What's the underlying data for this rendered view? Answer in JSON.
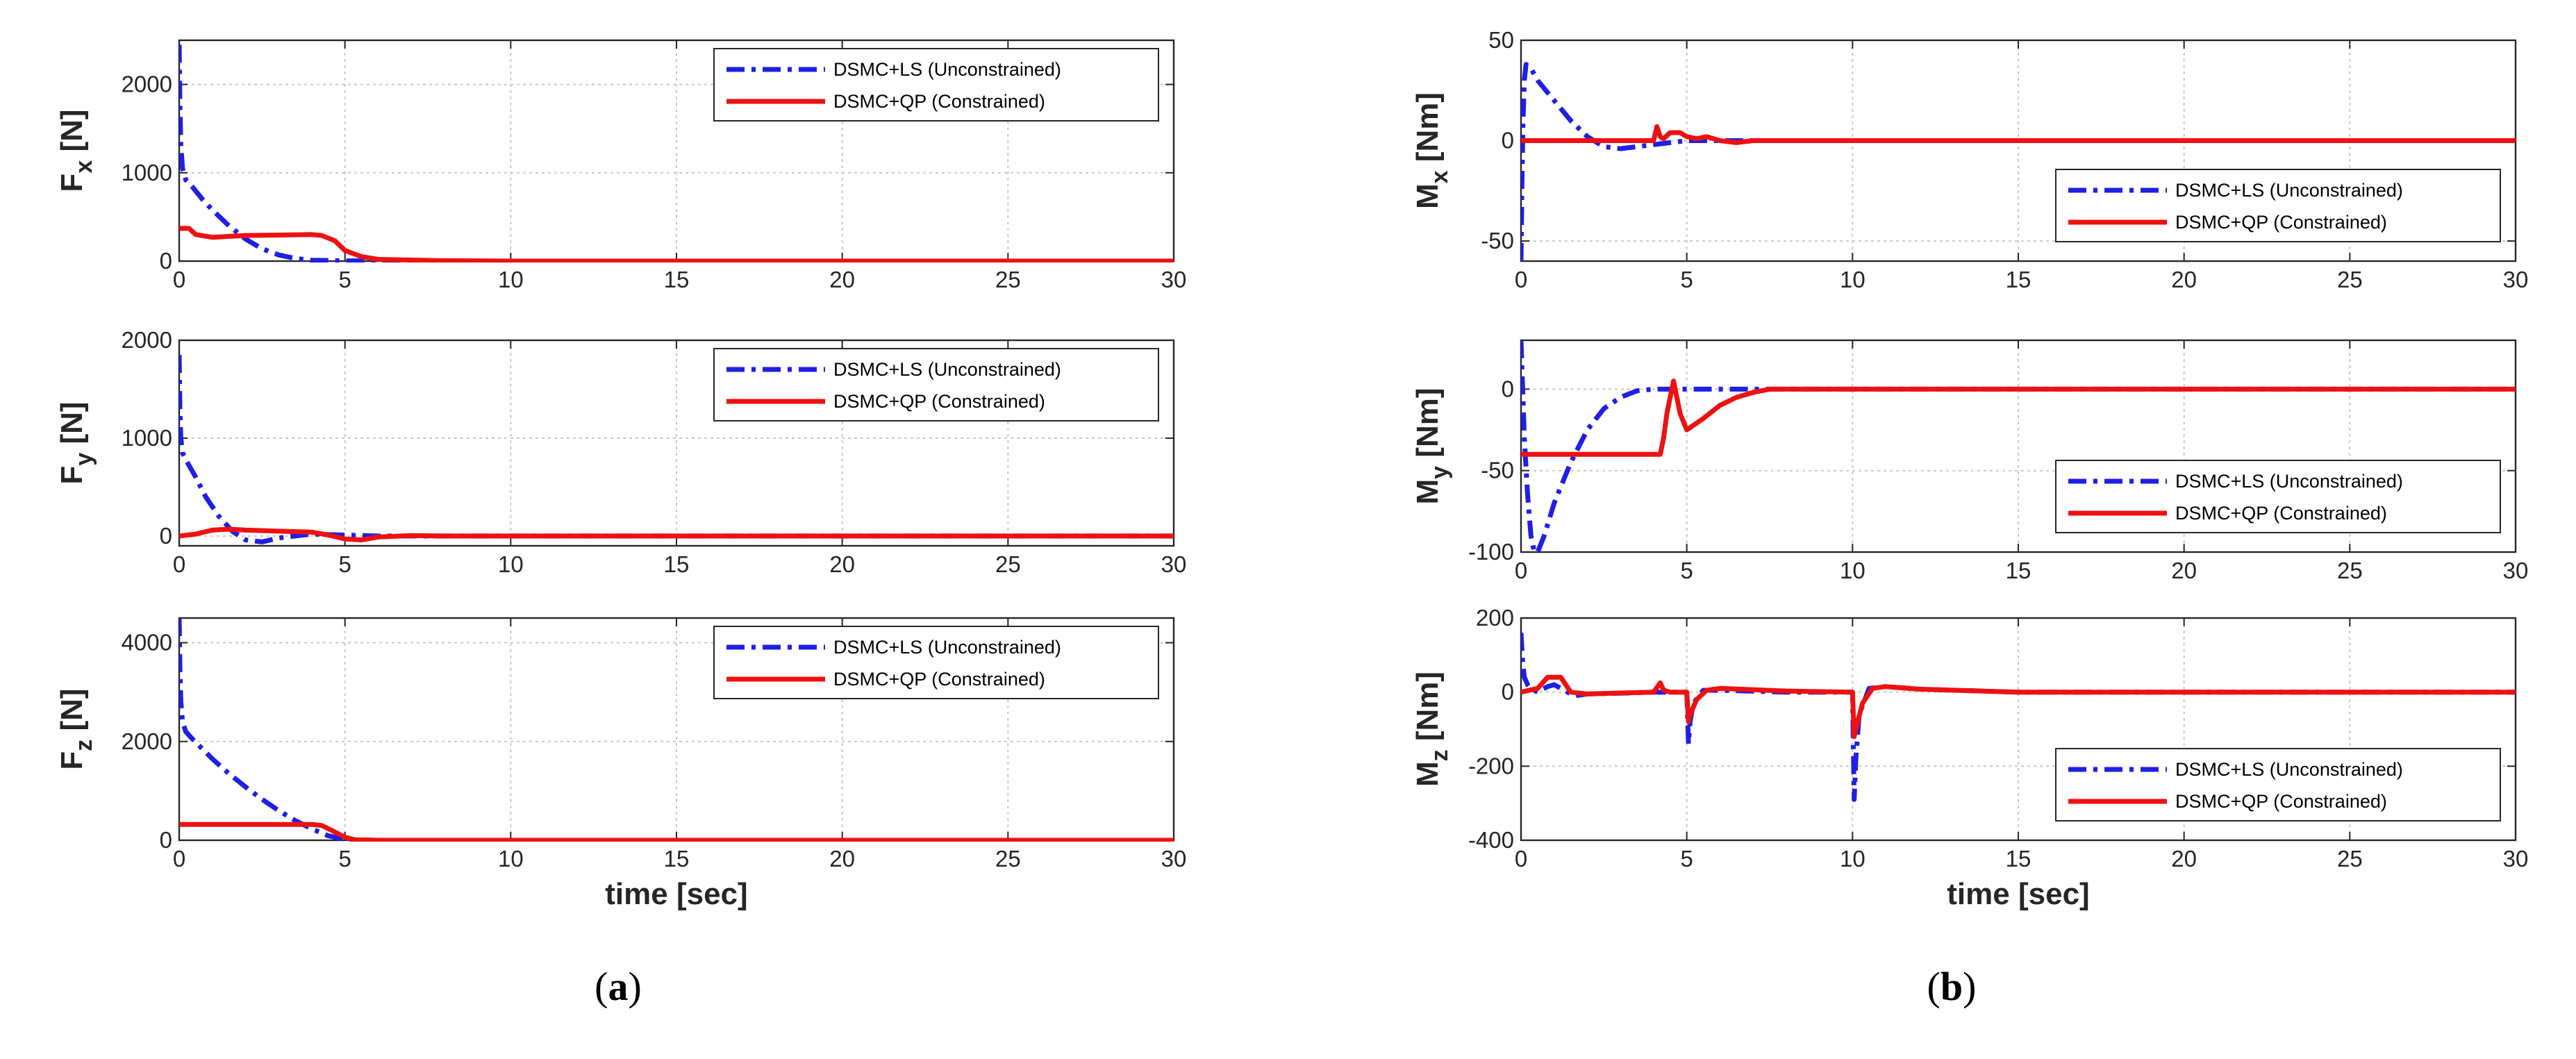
{
  "colors": {
    "unconstrained": "#1f1fe6",
    "constrained": "#ee1111"
  },
  "captions": {
    "a": "(a)",
    "b": "(b)"
  },
  "chart_data": [
    {
      "type": "line",
      "panel": "a-1",
      "ylabel_main": "F",
      "ylabel_sub": "x",
      "ylabel_unit": " [N]",
      "xlabel": "",
      "xlim": [
        0,
        30
      ],
      "ylim": [
        0,
        2500
      ],
      "xticks": [
        0,
        5,
        10,
        15,
        20,
        25,
        30
      ],
      "yticks": [
        0,
        1000,
        2000
      ],
      "grid": true,
      "legend_position": "top-right",
      "series": [
        {
          "name": "DSMC+LS (Unconstrained)",
          "style": "dashdot",
          "x": [
            0,
            0.02,
            0.05,
            0.1,
            0.2,
            0.4,
            0.7,
            1,
            1.5,
            2,
            2.5,
            3,
            3.5,
            4,
            5,
            6,
            8,
            10,
            30
          ],
          "y": [
            2450,
            1800,
            1300,
            1050,
            920,
            840,
            700,
            580,
            400,
            250,
            140,
            70,
            30,
            10,
            3,
            2,
            1,
            0,
            0
          ]
        },
        {
          "name": "DSMC+QP (Constrained)",
          "style": "solid",
          "x": [
            0,
            0.3,
            0.5,
            1,
            1.5,
            2,
            3,
            4,
            4.3,
            4.7,
            5,
            5.5,
            6,
            8,
            10,
            30
          ],
          "y": [
            370,
            370,
            300,
            270,
            280,
            290,
            295,
            300,
            290,
            230,
            120,
            50,
            20,
            5,
            0,
            0
          ]
        }
      ]
    },
    {
      "type": "line",
      "panel": "a-2",
      "ylabel_main": "F",
      "ylabel_sub": "y",
      "ylabel_unit": " [N]",
      "xlabel": "",
      "xlim": [
        0,
        30
      ],
      "ylim": [
        -100,
        2000
      ],
      "xticks": [
        0,
        5,
        10,
        15,
        20,
        25,
        30
      ],
      "yticks": [
        0,
        1000,
        2000
      ],
      "grid": true,
      "legend_position": "top-right",
      "series": [
        {
          "name": "DSMC+LS (Unconstrained)",
          "style": "dashdot",
          "x": [
            0,
            0.02,
            0.05,
            0.1,
            0.2,
            0.5,
            0.8,
            1.2,
            1.6,
            2,
            2.5,
            3,
            4,
            5,
            6,
            8,
            30
          ],
          "y": [
            1850,
            1300,
            1000,
            850,
            780,
            600,
            400,
            200,
            50,
            -40,
            -60,
            -20,
            20,
            10,
            0,
            0,
            0
          ]
        },
        {
          "name": "DSMC+QP (Constrained)",
          "style": "solid",
          "x": [
            0,
            0.5,
            1,
            1.5,
            2,
            3,
            4,
            4.5,
            5,
            5.5,
            6,
            7,
            8,
            30
          ],
          "y": [
            0,
            20,
            60,
            70,
            60,
            50,
            40,
            10,
            -30,
            -40,
            -10,
            5,
            0,
            0
          ]
        }
      ]
    },
    {
      "type": "line",
      "panel": "a-3",
      "ylabel_main": "F",
      "ylabel_sub": "z",
      "ylabel_unit": " [N]",
      "xlabel": "time [sec]",
      "xlim": [
        0,
        30
      ],
      "ylim": [
        0,
        4500
      ],
      "xticks": [
        0,
        5,
        10,
        15,
        20,
        25,
        30
      ],
      "yticks": [
        0,
        2000,
        4000
      ],
      "grid": true,
      "legend_position": "top-right",
      "series": [
        {
          "name": "DSMC+LS (Unconstrained)",
          "style": "dashdot",
          "x": [
            0,
            0.02,
            0.05,
            0.1,
            0.2,
            0.4,
            0.7,
            1,
            1.5,
            2,
            2.5,
            3,
            3.5,
            4,
            4.5,
            5,
            5.5,
            6,
            10,
            30
          ],
          "y": [
            4500,
            3500,
            2800,
            2400,
            2200,
            2050,
            1850,
            1650,
            1350,
            1080,
            830,
            600,
            400,
            230,
            90,
            20,
            5,
            0,
            0,
            0
          ]
        },
        {
          "name": "DSMC+QP (Constrained)",
          "style": "solid",
          "x": [
            0,
            4,
            4.3,
            4.6,
            5,
            5.3,
            6,
            10,
            30
          ],
          "y": [
            320,
            320,
            300,
            200,
            60,
            10,
            0,
            0,
            0
          ]
        }
      ]
    },
    {
      "type": "line",
      "panel": "b-1",
      "ylabel_main": "M",
      "ylabel_sub": "x",
      "ylabel_unit": " [Nm]",
      "xlabel": "",
      "xlim": [
        0,
        30
      ],
      "ylim": [
        -60,
        50
      ],
      "xticks": [
        0,
        5,
        10,
        15,
        20,
        25,
        30
      ],
      "yticks": [
        -50,
        0,
        50
      ],
      "grid": true,
      "legend_position": "bottom-right",
      "series": [
        {
          "name": "DSMC+LS (Unconstrained)",
          "style": "dashdot",
          "x": [
            0,
            0.03,
            0.06,
            0.1,
            0.15,
            0.3,
            0.5,
            1,
            1.5,
            2,
            2.5,
            3,
            4,
            5,
            6,
            7,
            30
          ],
          "y": [
            -60,
            -20,
            10,
            30,
            38,
            36,
            30,
            20,
            10,
            2,
            -3,
            -4,
            -2,
            0,
            0,
            0,
            0
          ]
        },
        {
          "name": "DSMC+QP (Constrained)",
          "style": "solid",
          "x": [
            0,
            4,
            4.1,
            4.2,
            4.3,
            4.5,
            4.8,
            5,
            5.3,
            5.6,
            6,
            6.5,
            7,
            30
          ],
          "y": [
            0,
            0,
            7,
            2,
            1,
            4,
            4,
            2,
            1,
            2,
            0,
            -1,
            0,
            0
          ]
        }
      ]
    },
    {
      "type": "line",
      "panel": "b-2",
      "ylabel_main": "M",
      "ylabel_sub": "y",
      "ylabel_unit": " [Nm]",
      "xlabel": "",
      "xlim": [
        0,
        30
      ],
      "ylim": [
        -100,
        30
      ],
      "xticks": [
        0,
        5,
        10,
        15,
        20,
        25,
        30
      ],
      "yticks": [
        -100,
        -50,
        0
      ],
      "grid": true,
      "legend_position": "bottom-right",
      "series": [
        {
          "name": "DSMC+LS (Unconstrained)",
          "style": "dashdot",
          "x": [
            0,
            0.05,
            0.1,
            0.2,
            0.3,
            0.4,
            0.5,
            0.7,
            1,
            1.5,
            2,
            2.5,
            3,
            3.5,
            4,
            5,
            6,
            7,
            30
          ],
          "y": [
            30,
            0,
            -30,
            -65,
            -90,
            -100,
            -100,
            -90,
            -70,
            -45,
            -25,
            -12,
            -5,
            -1,
            0,
            0,
            0,
            0,
            0
          ]
        },
        {
          "name": "DSMC+QP (Constrained)",
          "style": "solid",
          "x": [
            0,
            0.05,
            4.2,
            4.3,
            4.4,
            4.5,
            4.6,
            4.8,
            5,
            5.5,
            6,
            6.5,
            7,
            7.5,
            30
          ],
          "y": [
            -40,
            -40,
            -40,
            -30,
            -15,
            -5,
            5,
            -15,
            -25,
            -18,
            -10,
            -5,
            -2,
            0,
            0
          ]
        }
      ]
    },
    {
      "type": "line",
      "panel": "b-3",
      "ylabel_main": "M",
      "ylabel_sub": "z",
      "ylabel_unit": " [Nm]",
      "xlabel": "time [sec]",
      "xlim": [
        0,
        30
      ],
      "ylim": [
        -400,
        200
      ],
      "xticks": [
        0,
        5,
        10,
        15,
        20,
        25,
        30
      ],
      "yticks": [
        -400,
        -200,
        0,
        200
      ],
      "grid": true,
      "legend_position": "bottom-right",
      "series": [
        {
          "name": "DSMC+LS (Unconstrained)",
          "style": "dashdot",
          "x": [
            0,
            0.05,
            0.1,
            0.2,
            0.3,
            0.5,
            0.8,
            1,
            1.3,
            1.6,
            2,
            3,
            4,
            5,
            5.05,
            5.1,
            5.2,
            5.5,
            6,
            8,
            10,
            10.05,
            10.1,
            10.2,
            10.5,
            11,
            12,
            15,
            30
          ],
          "y": [
            160,
            80,
            40,
            20,
            10,
            0,
            15,
            20,
            5,
            -10,
            -5,
            -3,
            0,
            0,
            -140,
            -80,
            -30,
            5,
            5,
            0,
            0,
            -290,
            -180,
            -60,
            10,
            15,
            8,
            0,
            0
          ]
        },
        {
          "name": "DSMC+QP (Constrained)",
          "style": "solid",
          "x": [
            0,
            0.5,
            0.8,
            1.2,
            1.5,
            2,
            4,
            4.2,
            4.3,
            4.5,
            5,
            5.05,
            5.1,
            5.3,
            5.6,
            6,
            8,
            10,
            10.05,
            10.1,
            10.3,
            10.6,
            11,
            12,
            15,
            30
          ],
          "y": [
            0,
            10,
            40,
            40,
            0,
            -5,
            0,
            25,
            5,
            0,
            0,
            -80,
            -60,
            -20,
            5,
            10,
            3,
            0,
            -120,
            -100,
            -30,
            10,
            15,
            8,
            0,
            0
          ]
        }
      ]
    }
  ]
}
